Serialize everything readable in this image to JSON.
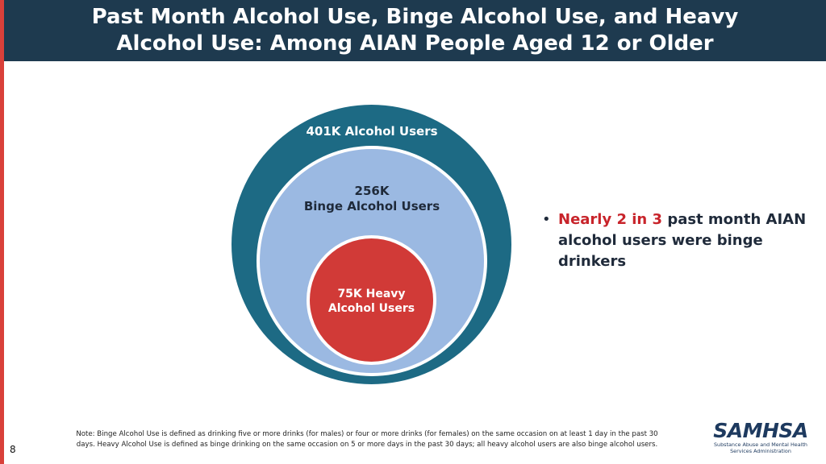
{
  "header": {
    "title_line1": "Past Month Alcohol Use, Binge Alcohol Use, and Heavy",
    "title_line2": "Alcohol Use: Among AIAN People Aged 12 or Older",
    "background_color": "#1e3a4f"
  },
  "diagram": {
    "outer": {
      "label": "401K Alcohol Users",
      "value": "401K",
      "color": "#1d6a84"
    },
    "middle": {
      "label_line1": "256K",
      "label_line2": "Binge Alcohol Users",
      "value": "256K",
      "color": "#9bb9e2"
    },
    "inner": {
      "label_line1": "75K Heavy",
      "label_line2": "Alcohol Users",
      "value": "75K",
      "color": "#d13a37"
    }
  },
  "bullet": {
    "marker": "•",
    "highlight": "Nearly 2 in 3",
    "rest": " past month AIAN alcohol users were binge drinkers",
    "highlight_color": "#c8242b"
  },
  "footer": {
    "note_line1": "Note: Binge Alcohol Use is defined as drinking five or more drinks (for males) or four or more drinks (for females) on the same occasion on at least 1 day in the past 30",
    "note_line2": "days. Heavy Alcohol Use is defined as binge drinking on the same occasion on 5 or more days in the past 30 days; all heavy alcohol users are also binge alcohol users.",
    "page_number": "8"
  },
  "logo": {
    "name": "SAMHSA",
    "subtitle_line1": "Substance Abuse and Mental Health",
    "subtitle_line2": "Services Administration"
  },
  "accent_color": "#d9403a"
}
